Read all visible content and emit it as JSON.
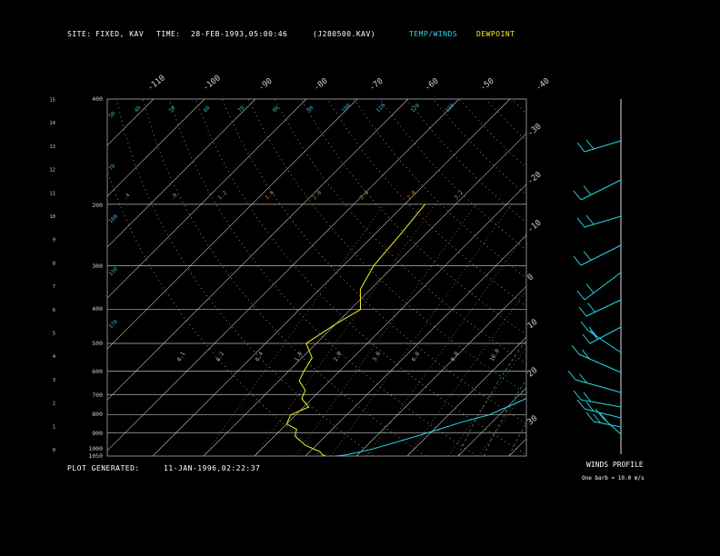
{
  "header": {
    "site_label": "SITE:",
    "site_value": "FIXED, KAV",
    "time_label": "TIME:",
    "time_value": "28-FEB-1993,05:00:46",
    "file_value": "(J280500.KAV)",
    "legend_temp": "TEMP/WINDS",
    "legend_dew": "DEWPOINT"
  },
  "footer": {
    "generated_label": "PLOT GENERATED:",
    "generated_value": "11-JAN-1996,02:22:37"
  },
  "winds": {
    "title": "WINDS PROFILE",
    "note": "One barb = 10.0 m/s"
  },
  "colors": {
    "temp": "#22d8e8",
    "dewpoint": "#f2f21f",
    "isobar": "#b8b8b8",
    "isotherm": "#c8c8c8",
    "dry_adiabat": "#d8d8d8",
    "moist_adiabat": "#3ab0c8",
    "mixing_ratio": "#d08a3a",
    "background": "#000000"
  },
  "chart_data": {
    "type": "line",
    "pressure_ticks": [
      "400",
      "200",
      "300",
      "400",
      "500",
      "600",
      "700",
      "800",
      "900",
      "1000",
      "1050"
    ],
    "altitude_ticks": [
      "0",
      "1",
      "2",
      "3",
      "4",
      "5",
      "6",
      "7",
      "8",
      "9",
      "10",
      "11",
      "12",
      "13",
      "14",
      "15"
    ],
    "temperature_ticks_top": [
      "-110",
      "-100",
      "-90",
      "-80",
      "-70",
      "-60",
      "-50",
      "-40"
    ],
    "temperature_ticks_right": [
      "-30",
      "-20",
      "-10",
      "0",
      "10",
      "20",
      "30"
    ],
    "mixing_ratio_labels": [
      ".4",
      ".8",
      "1.2",
      "1.6",
      "2.0",
      "2.4",
      "2.8",
      "3.2"
    ],
    "mixing_ratio_labels_lower": [
      "0.1",
      "0.2",
      "0.4",
      "1.0",
      "2.0",
      "3.0",
      "6.0",
      "8.0",
      "10.0"
    ],
    "dry_adiabat_labels_left": [
      "50",
      "70",
      "100",
      "130",
      "170"
    ],
    "adiabat_labels_top": [
      "40",
      "50",
      "60",
      "70",
      "80",
      "90",
      "100",
      "110",
      "120",
      "130",
      "140",
      "150",
      "160"
    ],
    "series": [
      {
        "name": "TEMP/WINDS",
        "t": [
          -34,
          -32,
          -30,
          -28,
          -25,
          -22,
          -19,
          -16,
          -12,
          -9,
          -6,
          -3,
          -1,
          1,
          2,
          3,
          3,
          4,
          6,
          7,
          9
        ],
        "p": [
          1050,
          1040,
          1020,
          1000,
          960,
          920,
          880,
          840,
          800,
          740,
          680,
          620,
          560,
          500,
          450,
          400,
          350,
          300,
          250,
          200,
          160
        ]
      },
      {
        "name": "DEWPOINT",
        "t": [
          -36,
          -37,
          -38,
          -40,
          -42,
          -44,
          -46,
          -47,
          -50,
          -51,
          -49,
          -52,
          -53,
          -56,
          -57,
          -58,
          -62,
          -60,
          -58,
          -62,
          -64,
          -65,
          -66
        ],
        "p": [
          1050,
          1040,
          1020,
          1000,
          980,
          950,
          920,
          880,
          850,
          800,
          760,
          720,
          680,
          640,
          600,
          550,
          500,
          440,
          400,
          350,
          300,
          240,
          200
        ]
      }
    ]
  }
}
